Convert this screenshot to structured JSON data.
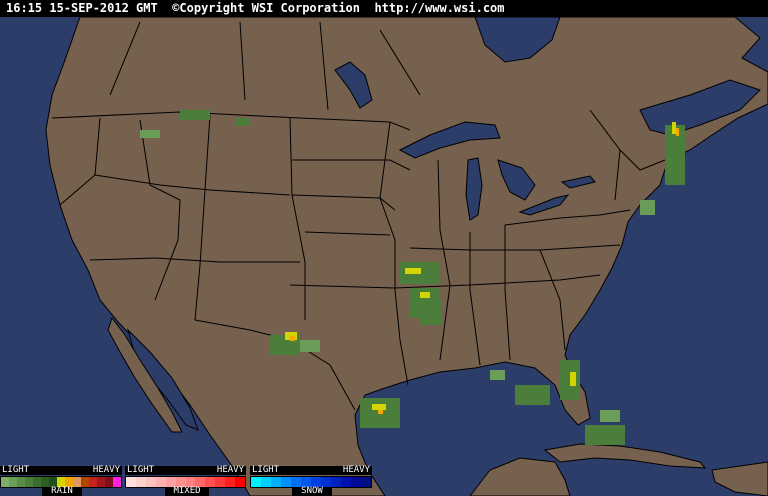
{
  "header": {
    "text": "16:15 15-SEP-2012 GMT  ©Copyright WSI Corporation  http://www.wsi.com"
  },
  "colors": {
    "ocean": "#2c3d6a",
    "land": "#76604e",
    "border": "#000000"
  },
  "legend": [
    {
      "name": "RAIN",
      "light": "LIGHT",
      "heavy": "HEAVY",
      "colors": [
        "#7fae6a",
        "#6a9e58",
        "#5a8e48",
        "#4a7e3a",
        "#3a6e2e",
        "#2e5e24",
        "#1e4e1a",
        "#d4d400",
        "#f0a800",
        "#e09860",
        "#b04800",
        "#c82020",
        "#a01818",
        "#801020",
        "#ff20e0"
      ]
    },
    {
      "name": "MIXED",
      "light": "LIGHT",
      "heavy": "HEAVY",
      "colors": [
        "#ffe0e0",
        "#ffd0d0",
        "#ffc0c0",
        "#ffb0b0",
        "#ffa0a0",
        "#ff9090",
        "#ff8080",
        "#ff6868",
        "#ff5050",
        "#ff3838",
        "#ff2020",
        "#ff0000"
      ]
    },
    {
      "name": "SNOW",
      "light": "LIGHT",
      "heavy": "HEAVY",
      "colors": [
        "#00f0ff",
        "#00d0ff",
        "#00b0ff",
        "#0090ff",
        "#0070f0",
        "#0058e8",
        "#0040e0",
        "#0030d0",
        "#0020c0",
        "#0010b0",
        "#000898",
        "#001080"
      ]
    }
  ]
}
